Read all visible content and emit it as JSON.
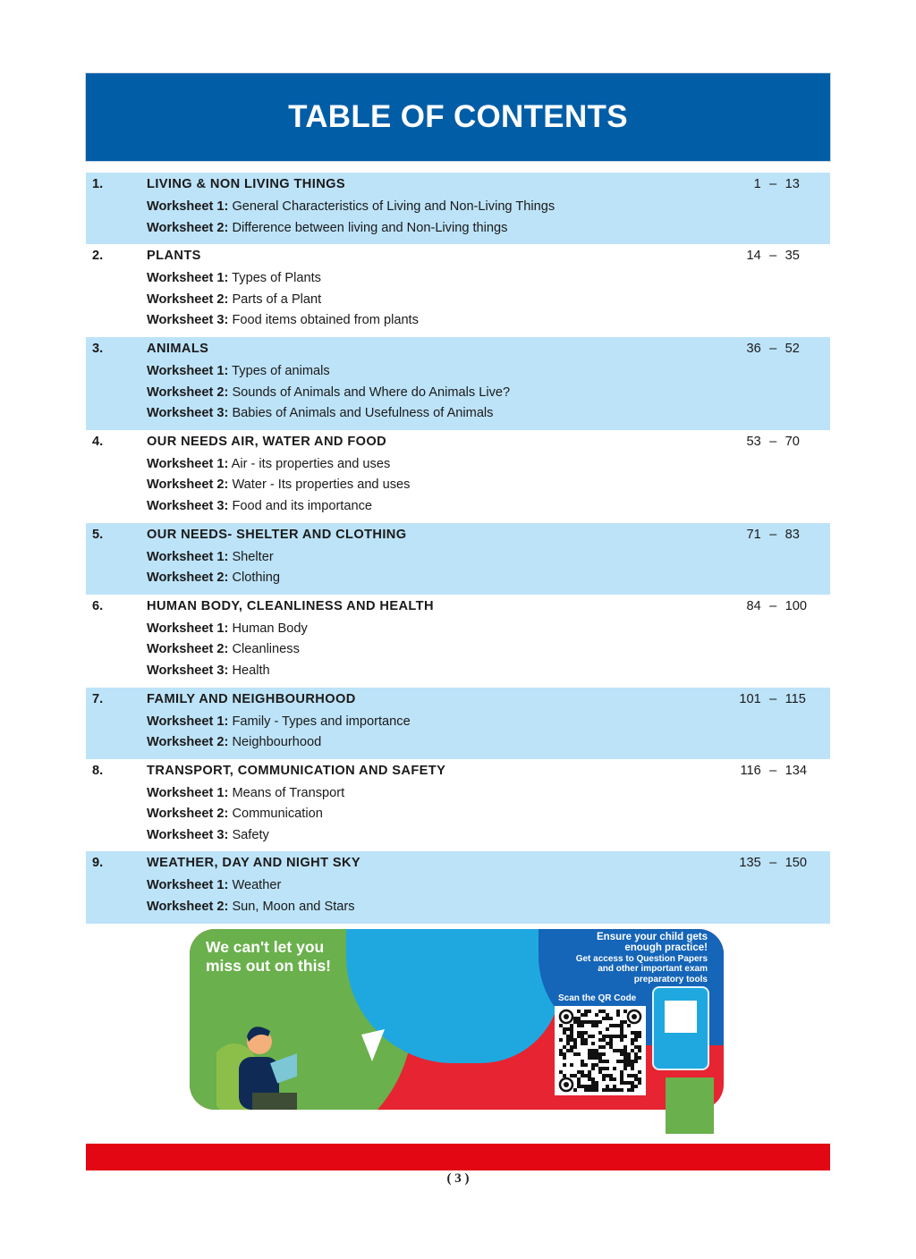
{
  "header": {
    "title": "TABLE OF CONTENTS"
  },
  "sections": [
    {
      "num": "1.",
      "title": "LIVING & NON LIVING THINGS",
      "start": "1",
      "end": "13",
      "worksheets": [
        {
          "label": "Worksheet 1:",
          "text": "General Characteristics of Living and Non-Living Things"
        },
        {
          "label": "Worksheet 2:",
          "text": "Difference between living and Non-Living things"
        }
      ]
    },
    {
      "num": "2.",
      "title": "PLANTS",
      "start": "14",
      "end": "35",
      "worksheets": [
        {
          "label": "Worksheet 1:",
          "text": "Types of Plants"
        },
        {
          "label": "Worksheet 2:",
          "text": "Parts of a Plant"
        },
        {
          "label": "Worksheet 3:",
          "text": "Food items obtained from plants"
        }
      ]
    },
    {
      "num": "3.",
      "title": "ANIMALS",
      "start": "36",
      "end": "52",
      "worksheets": [
        {
          "label": "Worksheet 1:",
          "text": "Types of animals"
        },
        {
          "label": "Worksheet 2:",
          "text": "Sounds of Animals and Where do Animals Live?"
        },
        {
          "label": "Worksheet 3:",
          "text": "Babies of Animals and Usefulness of Animals"
        }
      ]
    },
    {
      "num": "4.",
      "title": "OUR NEEDS AIR, WATER AND FOOD",
      "start": "53",
      "end": "70",
      "worksheets": [
        {
          "label": "Worksheet 1:",
          "text": "Air - its properties and uses"
        },
        {
          "label": "Worksheet 2:",
          "text": "Water - Its properties and uses"
        },
        {
          "label": "Worksheet 3:",
          "text": "Food and its importance"
        }
      ]
    },
    {
      "num": "5.",
      "title": "OUR NEEDS- SHELTER AND CLOTHING",
      "start": "71",
      "end": "83",
      "worksheets": [
        {
          "label": "Worksheet 1:",
          "text": "Shelter"
        },
        {
          "label": "Worksheet 2:",
          "text": "Clothing"
        }
      ]
    },
    {
      "num": "6.",
      "title": "HUMAN BODY, CLEANLINESS AND HEALTH",
      "start": "84",
      "end": "100",
      "worksheets": [
        {
          "label": "Worksheet 1:",
          "text": "Human Body"
        },
        {
          "label": "Worksheet 2:",
          "text": "Cleanliness"
        },
        {
          "label": "Worksheet 3:",
          "text": "Health"
        }
      ]
    },
    {
      "num": "7.",
      "title": "FAMILY AND NEIGHBOURHOOD",
      "start": "101",
      "end": "115",
      "worksheets": [
        {
          "label": "Worksheet 1:",
          "text": "Family - Types and importance"
        },
        {
          "label": "Worksheet 2:",
          "text": "Neighbourhood"
        }
      ]
    },
    {
      "num": "8.",
      "title": "TRANSPORT, COMMUNICATION AND SAFETY",
      "start": "116",
      "end": "134",
      "worksheets": [
        {
          "label": "Worksheet 1:",
          "text": "Means of Transport"
        },
        {
          "label": "Worksheet 2:",
          "text": "Communication"
        },
        {
          "label": "Worksheet 3:",
          "text": "Safety"
        }
      ]
    },
    {
      "num": "9.",
      "title": "WEATHER, DAY AND NIGHT SKY",
      "start": "135",
      "end": "150",
      "worksheets": [
        {
          "label": "Worksheet 1:",
          "text": "Weather"
        },
        {
          "label": "Worksheet 2:",
          "text": "Sun, Moon and Stars"
        }
      ]
    }
  ],
  "page_range_separator": "–",
  "banner": {
    "headline_1": "We can't let you",
    "headline_2": "miss out on this!",
    "promo_1": "Ensure your child gets",
    "promo_2": "enough practice!",
    "promo_3": "Get access to Question Papers",
    "promo_4": "and other important exam",
    "promo_5": "preparatory tools",
    "scan_label": "Scan the QR Code"
  },
  "colors": {
    "header": "#005da6",
    "band": "#bde3f8",
    "footer_bar": "#e30613"
  },
  "footer": {
    "page_number": "( 3 )"
  }
}
